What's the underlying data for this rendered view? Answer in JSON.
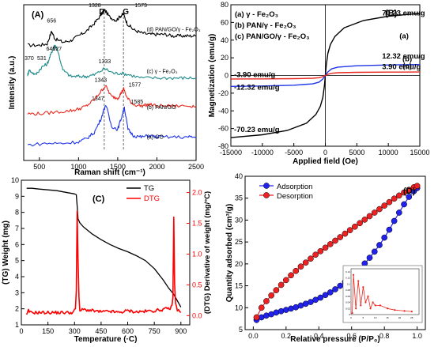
{
  "chart_data": [
    {
      "panel": "(A)",
      "type": "line",
      "xlabel": "Raman shift (cm⁻¹)",
      "ylabel": "Intensity (a.u.)",
      "xlim": [
        300,
        2500
      ],
      "xticks": [
        500,
        1000,
        1500,
        2000,
        2500
      ],
      "band_labels": [
        "D",
        "G"
      ],
      "band_positions": [
        1328,
        1573
      ],
      "colors": [
        "#000000",
        "#1f8a8a",
        "#e8281f",
        "#1f35e8"
      ],
      "series": [
        {
          "name": "(d) PAN/GO/γ - Fe₂O₃",
          "peaks": [
            656,
            1328,
            1573
          ],
          "x": [
            350,
            500,
            600,
            656,
            700,
            800,
            900,
            1000,
            1100,
            1200,
            1280,
            1328,
            1400,
            1480,
            1540,
            1573,
            1620,
            1700,
            1800,
            1900,
            2000,
            2100,
            2200,
            2300,
            2400,
            2500
          ],
          "y": [
            0.74,
            0.74,
            0.75,
            0.83,
            0.78,
            0.76,
            0.77,
            0.8,
            0.83,
            0.88,
            0.93,
            0.97,
            0.92,
            0.9,
            0.93,
            0.94,
            0.88,
            0.84,
            0.82,
            0.81,
            0.81,
            0.81,
            0.8,
            0.8,
            0.8,
            0.8
          ]
        },
        {
          "name": "(c) γ - Fe₂O₃",
          "peaks": [
            370,
            531,
            646,
            727,
            1333
          ],
          "x": [
            350,
            370,
            450,
            531,
            600,
            646,
            690,
            727,
            800,
            900,
            1000,
            1100,
            1200,
            1333,
            1450,
            1550,
            1650,
            1800,
            2000,
            2200,
            2350,
            2500
          ],
          "y": [
            0.55,
            0.58,
            0.55,
            0.6,
            0.62,
            0.68,
            0.74,
            0.72,
            0.58,
            0.54,
            0.54,
            0.54,
            0.55,
            0.59,
            0.56,
            0.56,
            0.55,
            0.53,
            0.53,
            0.53,
            0.53,
            0.53
          ]
        },
        {
          "name": "(b) PAN/GO",
          "peaks": [
            1343,
            1577
          ],
          "x": [
            350,
            500,
            700,
            900,
            1000,
            1100,
            1200,
            1280,
            1343,
            1420,
            1500,
            1540,
            1577,
            1620,
            1700,
            1800,
            1900,
            2000,
            2200,
            2400,
            2500
          ],
          "y": [
            0.3,
            0.3,
            0.31,
            0.32,
            0.33,
            0.35,
            0.39,
            0.44,
            0.48,
            0.41,
            0.4,
            0.43,
            0.46,
            0.4,
            0.36,
            0.35,
            0.36,
            0.35,
            0.35,
            0.35,
            0.35
          ]
        },
        {
          "name": "(a) GO",
          "peaks": [
            1347,
            1585
          ],
          "x": [
            350,
            600,
            800,
            1000,
            1100,
            1200,
            1280,
            1347,
            1420,
            1500,
            1550,
            1585,
            1630,
            1700,
            1800,
            1900,
            2000,
            2200,
            2400,
            2500
          ],
          "y": [
            0.1,
            0.11,
            0.11,
            0.12,
            0.14,
            0.18,
            0.26,
            0.36,
            0.22,
            0.2,
            0.28,
            0.34,
            0.2,
            0.16,
            0.15,
            0.16,
            0.15,
            0.15,
            0.15,
            0.15
          ]
        }
      ]
    },
    {
      "panel": "(B)",
      "type": "line",
      "xlabel": "Applied field (Oe)",
      "ylabel": "Magnetization (emu/g)",
      "xlim": [
        -15000,
        15000
      ],
      "ylim": [
        -80,
        80
      ],
      "xticks": [
        -15000,
        -10000,
        -5000,
        0,
        5000,
        10000,
        15000
      ],
      "yticks": [
        -80,
        -60,
        -40,
        -20,
        0,
        20,
        40,
        60,
        80
      ],
      "legend": [
        "(a) γ - Fe₂O₃",
        "(b) PAN/γ - Fe₂O₃",
        "(c) PAN/GO/γ - Fe₂O₃"
      ],
      "curve_tags": [
        "(a)",
        "(b)",
        "(c)"
      ],
      "annotations": [
        "70.23 emu/g",
        "12.32 emu/g",
        "3.90 emu/g",
        "-3.90 emu/g",
        "-12.32 emu/g",
        "-70.23 emu/g"
      ],
      "colors": [
        "#000000",
        "#1f35e8",
        "#e8281f"
      ],
      "series": [
        {
          "name": "(a) γ - Fe₂O₃",
          "ms": 70.23,
          "x": [
            -15000,
            -10000,
            -6000,
            -3000,
            -1500,
            -800,
            -400,
            -150,
            0,
            150,
            400,
            800,
            1500,
            3000,
            6000,
            10000,
            15000
          ],
          "y": [
            -70.23,
            -67,
            -62,
            -54,
            -44,
            -35,
            -25,
            -12,
            0,
            12,
            25,
            35,
            44,
            54,
            62,
            67,
            70.23
          ]
        },
        {
          "name": "(b) PAN/γ - Fe₂O₃",
          "ms": 12.32,
          "x": [
            -15000,
            -10000,
            -5000,
            -2000,
            -1000,
            -400,
            0,
            400,
            1000,
            2000,
            5000,
            10000,
            15000
          ],
          "y": [
            -12.32,
            -11.9,
            -11,
            -9.5,
            -7.5,
            -4,
            0,
            4,
            7.5,
            9.5,
            11,
            11.9,
            12.32
          ]
        },
        {
          "name": "(c) PAN/GO/γ - Fe₂O₃",
          "ms": 3.9,
          "x": [
            -15000,
            -10000,
            -5000,
            -2000,
            -1000,
            -400,
            0,
            400,
            1000,
            2000,
            5000,
            10000,
            15000
          ],
          "y": [
            -3.9,
            -3.8,
            -3.6,
            -3.1,
            -2.5,
            -1.3,
            0,
            1.3,
            2.5,
            3.1,
            3.6,
            3.8,
            3.9
          ]
        }
      ]
    },
    {
      "panel": "(C)",
      "type": "line",
      "xlabel": "Temperature (·C)",
      "ylabel_left": "(TG) Weight (mg)",
      "ylabel_right": "(DTG) Derivative of weight (mg/°C)",
      "xlim": [
        0,
        950
      ],
      "ylim_left": [
        1,
        10
      ],
      "ylim_right": [
        -0.15,
        2.2
      ],
      "xticks": [
        0,
        150,
        300,
        450,
        600,
        750,
        900
      ],
      "yticks_left": [
        1,
        2,
        3,
        4,
        5,
        6,
        7,
        8,
        9,
        10
      ],
      "yticks_right": [
        0.0,
        0.5,
        1.0,
        1.5,
        2.0
      ],
      "legend": [
        "TG",
        "DTG"
      ],
      "colors": [
        "#000000",
        "#ff0000"
      ],
      "series": [
        {
          "name": "TG",
          "x": [
            30,
            60,
            100,
            150,
            200,
            250,
            300,
            310,
            315,
            320,
            330,
            350,
            400,
            450,
            500,
            550,
            600,
            650,
            700,
            750,
            800,
            830,
            860,
            880,
            900
          ],
          "y": [
            9.5,
            9.5,
            9.45,
            9.4,
            9.35,
            9.25,
            9.15,
            9.1,
            8.4,
            7.6,
            7.35,
            7.1,
            6.65,
            6.3,
            6.0,
            5.75,
            5.55,
            5.3,
            5.0,
            4.5,
            3.8,
            3.3,
            2.9,
            2.5,
            2.1
          ]
        },
        {
          "name": "DTG",
          "x": [
            30,
            40,
            50,
            100,
            150,
            200,
            250,
            290,
            305,
            310,
            315,
            320,
            325,
            330,
            350,
            400,
            450,
            500,
            550,
            600,
            650,
            700,
            750,
            800,
            840,
            850,
            855,
            860,
            865,
            870,
            880,
            900
          ],
          "y": [
            0.0,
            0.08,
            0.05,
            0.05,
            0.05,
            0.05,
            0.05,
            0.05,
            0.1,
            0.4,
            1.7,
            0.9,
            0.3,
            0.08,
            0.1,
            0.08,
            0.06,
            0.07,
            0.05,
            0.08,
            0.06,
            0.07,
            0.08,
            0.1,
            0.12,
            0.15,
            0.3,
            1.6,
            0.5,
            0.2,
            0.1,
            0.05
          ]
        }
      ]
    },
    {
      "panel": "(D)",
      "type": "scatter",
      "xlabel": "Relative pressure (P/P₀)",
      "ylabel": "Quantity adsorbed (cm³/g)",
      "xlim": [
        -0.05,
        1.05
      ],
      "ylim": [
        5,
        40
      ],
      "xticks": [
        0.0,
        0.2,
        0.4,
        0.6,
        0.8,
        1.0
      ],
      "yticks": [
        5,
        10,
        15,
        20,
        25,
        30,
        35,
        40
      ],
      "legend": [
        "Adsorption",
        "Desorption"
      ],
      "colors": [
        "#2222ee",
        "#ee2222"
      ],
      "series": [
        {
          "name": "Adsorption",
          "x": [
            0.02,
            0.05,
            0.08,
            0.11,
            0.14,
            0.17,
            0.2,
            0.23,
            0.26,
            0.29,
            0.32,
            0.35,
            0.38,
            0.41,
            0.44,
            0.47,
            0.5,
            0.53,
            0.56,
            0.59,
            0.62,
            0.65,
            0.68,
            0.71,
            0.74,
            0.77,
            0.8,
            0.83,
            0.86,
            0.89,
            0.92,
            0.95,
            0.98,
            1.0
          ],
          "y": [
            7.2,
            7.8,
            8.2,
            8.5,
            8.9,
            9.2,
            9.5,
            9.8,
            10.1,
            10.5,
            10.9,
            11.3,
            11.8,
            12.3,
            12.9,
            13.5,
            14.2,
            15.0,
            15.9,
            16.8,
            17.8,
            18.9,
            20.1,
            21.4,
            22.8,
            24.3,
            26.0,
            27.8,
            29.8,
            31.7,
            33.6,
            35.3,
            36.6,
            37.3
          ]
        },
        {
          "name": "Desorption",
          "x": [
            0.02,
            0.05,
            0.08,
            0.11,
            0.14,
            0.17,
            0.2,
            0.23,
            0.26,
            0.29,
            0.32,
            0.35,
            0.38,
            0.41,
            0.44,
            0.47,
            0.5,
            0.53,
            0.56,
            0.59,
            0.62,
            0.65,
            0.68,
            0.71,
            0.74,
            0.77,
            0.8,
            0.83,
            0.86,
            0.89,
            0.92,
            0.95,
            0.98,
            1.0
          ],
          "y": [
            7.8,
            10.0,
            11.5,
            12.8,
            14.0,
            15.2,
            16.3,
            17.4,
            18.4,
            19.4,
            20.3,
            21.2,
            22.1,
            22.9,
            23.7,
            24.5,
            25.3,
            26.1,
            26.9,
            27.7,
            28.5,
            29.3,
            30.1,
            30.9,
            31.7,
            32.5,
            33.3,
            34.1,
            34.9,
            35.6,
            36.3,
            36.9,
            37.5,
            37.8
          ]
        }
      ],
      "inset": {
        "xticks": [
          0,
          5,
          10,
          15,
          20,
          25
        ],
        "yticks": [
          0.0,
          0.02,
          0.04,
          0.06,
          0.08,
          0.1,
          0.12,
          0.14
        ],
        "x": [
          0.5,
          1,
          2,
          3,
          4,
          5,
          6,
          7,
          8,
          9,
          10,
          12,
          15,
          18,
          22,
          25
        ],
        "y": [
          0.005,
          0.13,
          0.02,
          0.11,
          0.03,
          0.09,
          0.04,
          0.06,
          0.02,
          0.04,
          0.03,
          0.03,
          0.02,
          0.015,
          0.012,
          0.01
        ]
      }
    }
  ]
}
